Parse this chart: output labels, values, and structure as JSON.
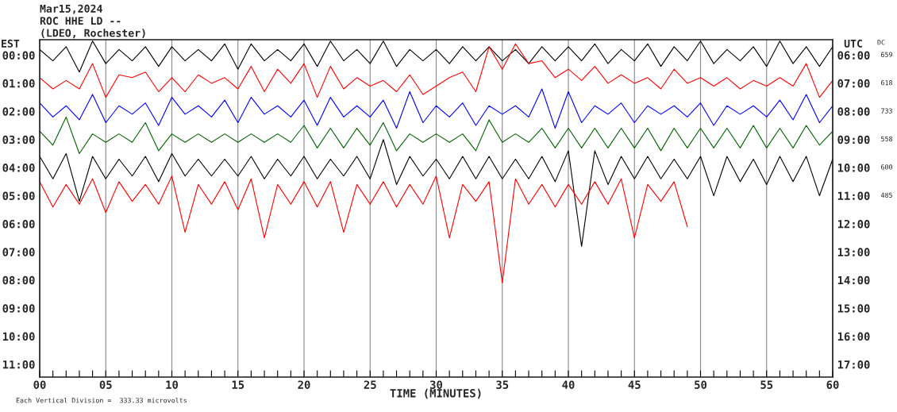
{
  "chart_data": {
    "type": "line",
    "title": "Mar15,2024",
    "subtitle": "ROC HHE LD --\n(LDEO, Rochester)",
    "xlabel": "TIME (MINUTES)",
    "annotations": [
      "EST",
      "UTC",
      "DC",
      "659",
      "618",
      "733",
      "558",
      "600",
      "485",
      "Each Vertical Division =  333.33 microvolts"
    ],
    "x": [
      0,
      1,
      2,
      3,
      4,
      5,
      6,
      7,
      8,
      9,
      10,
      11,
      12,
      13,
      14,
      15,
      16,
      17,
      18,
      19,
      20,
      21,
      22,
      23,
      24,
      25,
      26,
      27,
      28,
      29,
      30,
      31,
      32,
      33,
      34,
      35,
      36,
      37,
      38,
      39,
      40,
      41,
      42,
      43,
      44,
      45,
      46,
      47,
      48,
      49,
      50,
      51,
      52,
      53,
      54,
      55,
      56,
      57,
      58,
      59,
      60
    ],
    "series": [
      {
        "color": "#000000",
        "values": [
          -0.2,
          0.2,
          -0.3,
          0.6,
          -0.5,
          0.3,
          -0.2,
          0.2,
          -0.3,
          0.4,
          -0.3,
          0.2,
          -0.2,
          0.2,
          -0.4,
          0.5,
          -0.4,
          0.2,
          -0.2,
          0.2,
          -0.4,
          0.4,
          -0.5,
          0.2,
          -0.2,
          0.3,
          -0.5,
          0.4,
          -0.2,
          0.2,
          -0.2,
          0.3,
          -0.3,
          0.2,
          -0.3,
          0.2,
          -0.2,
          0.3,
          -0.3,
          0.2,
          -0.3,
          0.2,
          -0.4,
          0.3,
          -0.2,
          0.2,
          -0.4,
          0.4,
          -0.3,
          0.2,
          -0.5,
          0.3,
          -0.2,
          0.2,
          -0.3,
          0.4,
          -0.5,
          0.3,
          -0.3,
          0.4,
          -0.3
        ]
      },
      {
        "color": "#ff0000",
        "values": [
          0.8,
          1.2,
          0.9,
          1.2,
          0.3,
          1.5,
          0.7,
          0.8,
          0.6,
          1.3,
          0.8,
          1.3,
          0.7,
          1.0,
          0.8,
          1.2,
          0.4,
          1.3,
          0.5,
          1.0,
          0.3,
          1.5,
          0.4,
          1.2,
          0.8,
          1.1,
          0.9,
          1.3,
          0.7,
          1.4,
          1.1,
          0.8,
          0.6,
          1.3,
          -0.3,
          0.5,
          -0.4,
          0.3,
          0.2,
          0.8,
          0.5,
          0.9,
          0.4,
          1.0,
          0.7,
          1.0,
          0.8,
          1.2,
          0.5,
          1.0,
          0.8,
          1.1,
          0.8,
          1.2,
          0.9,
          1.1,
          0.8,
          1.1,
          0.3,
          1.5,
          0.9
        ]
      },
      {
        "color": "#0000ff",
        "values": [
          1.7,
          2.2,
          1.8,
          2.3,
          1.4,
          2.4,
          1.8,
          2.1,
          1.7,
          2.5,
          1.5,
          2.1,
          1.8,
          2.2,
          1.6,
          2.4,
          1.5,
          2.1,
          1.8,
          2.2,
          1.6,
          2.5,
          1.5,
          2.2,
          1.8,
          2.2,
          1.6,
          2.6,
          1.3,
          2.4,
          1.8,
          2.2,
          1.7,
          2.5,
          1.8,
          2.1,
          1.8,
          2.2,
          1.2,
          2.6,
          1.3,
          2.4,
          1.8,
          2.1,
          1.7,
          2.4,
          1.8,
          2.1,
          1.8,
          2.2,
          1.7,
          2.5,
          1.8,
          2.1,
          1.8,
          2.2,
          1.6,
          2.3,
          1.4,
          2.4,
          1.8
        ]
      },
      {
        "color": "#006400",
        "values": [
          2.7,
          3.2,
          2.2,
          3.5,
          2.8,
          3.1,
          2.8,
          3.1,
          2.4,
          3.4,
          2.8,
          3.1,
          2.8,
          3.1,
          2.8,
          3.1,
          2.8,
          3.1,
          2.8,
          3.1,
          2.5,
          3.3,
          2.6,
          3.3,
          2.6,
          3.2,
          2.4,
          3.4,
          2.8,
          3.1,
          2.8,
          3.1,
          2.8,
          3.4,
          2.3,
          3.1,
          2.8,
          3.1,
          2.6,
          3.3,
          2.6,
          3.3,
          2.6,
          3.3,
          2.6,
          3.3,
          2.6,
          3.4,
          2.6,
          3.3,
          2.6,
          3.3,
          2.6,
          3.3,
          2.5,
          3.3,
          2.6,
          3.3,
          2.5,
          3.2,
          2.7
        ]
      },
      {
        "color": "#000000",
        "values": [
          3.6,
          4.4,
          3.5,
          5.2,
          3.6,
          4.4,
          3.7,
          4.3,
          3.6,
          4.5,
          3.5,
          4.3,
          3.7,
          4.3,
          3.7,
          4.3,
          3.6,
          4.4,
          3.7,
          4.3,
          3.6,
          4.4,
          3.7,
          4.3,
          3.6,
          4.4,
          3.0,
          4.6,
          3.6,
          4.3,
          3.7,
          4.4,
          3.6,
          4.4,
          3.6,
          4.4,
          3.7,
          4.4,
          3.6,
          4.5,
          3.4,
          6.8,
          3.4,
          4.6,
          3.6,
          4.4,
          3.6,
          4.4,
          3.7,
          4.4,
          3.6,
          5.0,
          3.6,
          4.5,
          3.7,
          4.6,
          3.6,
          4.5,
          3.6,
          5.0,
          3.7
        ]
      },
      {
        "color": "#ff0000",
        "x": [
          0,
          1,
          2,
          3,
          4,
          5,
          6,
          7,
          8,
          9,
          10,
          11,
          12,
          13,
          14,
          15,
          16,
          17,
          18,
          19,
          20,
          21,
          22,
          23,
          24,
          25,
          26,
          27,
          28,
          29,
          30,
          31,
          32,
          33,
          34,
          35,
          36,
          37,
          38,
          39,
          40,
          41,
          42,
          43,
          44,
          45,
          46,
          47,
          48,
          49
        ],
        "values": [
          4.5,
          5.4,
          4.6,
          5.3,
          4.4,
          5.6,
          4.5,
          5.2,
          4.6,
          5.3,
          4.3,
          6.3,
          4.6,
          5.3,
          4.5,
          5.5,
          4.4,
          6.5,
          4.6,
          5.3,
          4.5,
          5.4,
          4.5,
          6.3,
          4.6,
          5.3,
          4.5,
          5.4,
          4.6,
          5.3,
          4.3,
          6.5,
          4.6,
          5.2,
          4.5,
          8.1,
          4.4,
          5.3,
          4.6,
          5.4,
          4.6,
          5.3,
          4.5,
          5.3,
          4.4,
          6.5,
          4.6,
          5.2,
          4.5,
          6.1
        ]
      }
    ],
    "xlim": [
      0,
      60
    ],
    "xticks": [
      {
        "value": 0,
        "label": "00"
      },
      {
        "value": 1,
        "label": null
      },
      {
        "value": 2,
        "label": null
      },
      {
        "value": 3,
        "label": null
      },
      {
        "value": 4,
        "label": null
      },
      {
        "value": 5,
        "label": "05"
      },
      {
        "value": 6,
        "label": null
      },
      {
        "value": 7,
        "label": null
      },
      {
        "value": 8,
        "label": null
      },
      {
        "value": 9,
        "label": null
      },
      {
        "value": 10,
        "label": "10"
      },
      {
        "value": 11,
        "label": null
      },
      {
        "value": 12,
        "label": null
      },
      {
        "value": 13,
        "label": null
      },
      {
        "value": 14,
        "label": null
      },
      {
        "value": 15,
        "label": "15"
      },
      {
        "value": 16,
        "label": null
      },
      {
        "value": 17,
        "label": null
      },
      {
        "value": 18,
        "label": null
      },
      {
        "value": 19,
        "label": null
      },
      {
        "value": 20,
        "label": "20"
      },
      {
        "value": 21,
        "label": null
      },
      {
        "value": 22,
        "label": null
      },
      {
        "value": 23,
        "label": null
      },
      {
        "value": 24,
        "label": null
      },
      {
        "value": 25,
        "label": "25"
      },
      {
        "value": 26,
        "label": null
      },
      {
        "value": 27,
        "label": null
      },
      {
        "value": 28,
        "label": null
      },
      {
        "value": 29,
        "label": null
      },
      {
        "value": 30,
        "label": "30"
      },
      {
        "value": 31,
        "label": null
      },
      {
        "value": 32,
        "label": null
      },
      {
        "value": 33,
        "label": null
      },
      {
        "value": 34,
        "label": null
      },
      {
        "value": 35,
        "label": "35"
      },
      {
        "value": 36,
        "label": null
      },
      {
        "value": 37,
        "label": null
      },
      {
        "value": 38,
        "label": null
      },
      {
        "value": 39,
        "label": null
      },
      {
        "value": 40,
        "label": "40"
      },
      {
        "value": 41,
        "label": null
      },
      {
        "value": 42,
        "label": null
      },
      {
        "value": 43,
        "label": null
      },
      {
        "value": 44,
        "label": null
      },
      {
        "value": 45,
        "label": "45"
      },
      {
        "value": 46,
        "label": null
      },
      {
        "value": 47,
        "label": null
      },
      {
        "value": 48,
        "label": null
      },
      {
        "value": 49,
        "label": null
      },
      {
        "value": 50,
        "label": "50"
      },
      {
        "value": 51,
        "label": null
      },
      {
        "value": 52,
        "label": null
      },
      {
        "value": 53,
        "label": null
      },
      {
        "value": 54,
        "label": null
      },
      {
        "value": 55,
        "label": "55"
      },
      {
        "value": 56,
        "label": null
      },
      {
        "value": 57,
        "label": null
      },
      {
        "value": 58,
        "label": null
      },
      {
        "value": 59,
        "label": null
      },
      {
        "value": 60,
        "label": "60"
      }
    ],
    "ylim": [
      11.45,
      -0.55
    ],
    "yticks": [
      {
        "value": 0,
        "label": "00:00"
      },
      {
        "value": 1,
        "label": "01:00"
      },
      {
        "value": 2,
        "label": "02:00"
      },
      {
        "value": 3,
        "label": "03:00"
      },
      {
        "value": 4,
        "label": "04:00"
      },
      {
        "value": 5,
        "label": "05:00"
      },
      {
        "value": 6,
        "label": "06:00"
      },
      {
        "value": 7,
        "label": "07:00"
      },
      {
        "value": 8,
        "label": "08:00"
      },
      {
        "value": 9,
        "label": "09:00"
      },
      {
        "value": 10,
        "label": "10:00"
      },
      {
        "value": 11,
        "label": "11:00"
      }
    ],
    "y2lim": [
      17.45,
      5.45
    ],
    "y2ticks": [
      {
        "value": 6,
        "label": "06:00"
      },
      {
        "value": 7,
        "label": "07:00"
      },
      {
        "value": 8,
        "label": "08:00"
      },
      {
        "value": 9,
        "label": "09:00"
      },
      {
        "value": 10,
        "label": "10:00"
      },
      {
        "value": 11,
        "label": "11:00"
      },
      {
        "value": 12,
        "label": "12:00"
      },
      {
        "value": 13,
        "label": "13:00"
      },
      {
        "value": 14,
        "label": "14:00"
      },
      {
        "value": 15,
        "label": "15:00"
      },
      {
        "value": 16,
        "label": "16:00"
      },
      {
        "value": 17,
        "label": "17:00"
      }
    ],
    "grid": "x",
    "line_style": "solid",
    "marker": "none"
  }
}
